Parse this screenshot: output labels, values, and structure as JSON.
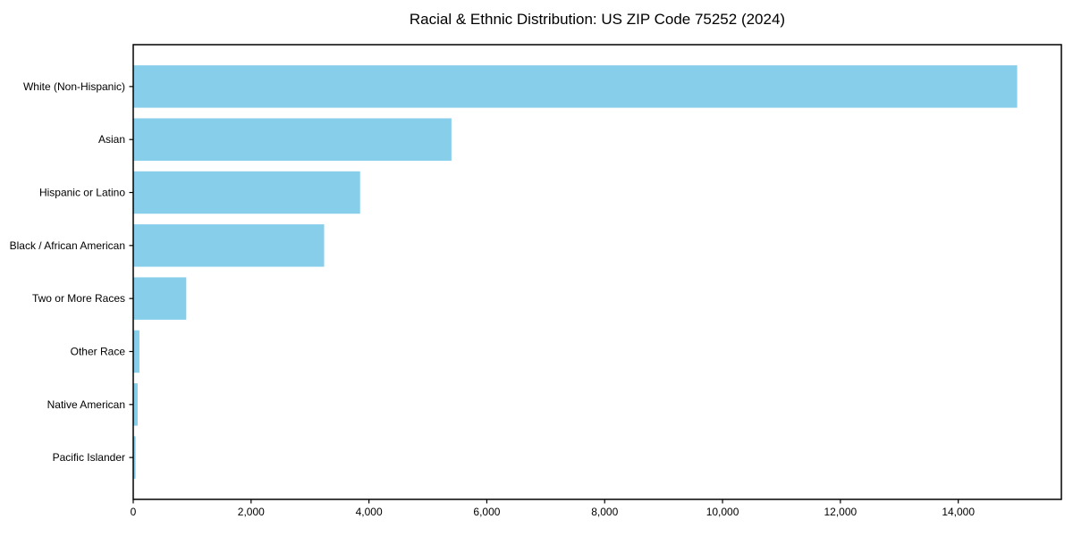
{
  "page": {
    "background_color": "#ffffff",
    "text_color": "#000000"
  },
  "chart_data": {
    "type": "bar",
    "orientation": "horizontal",
    "title": "Racial & Ethnic Distribution: US ZIP Code 75252 (2024)",
    "categories": [
      "White (Non-Hispanic)",
      "Asian",
      "Hispanic or Latino",
      "Black / African American",
      "Two or More Races",
      "Other Race",
      "Native American",
      "Pacific Islander"
    ],
    "values": [
      15000,
      5400,
      3850,
      3240,
      900,
      105,
      75,
      40
    ],
    "xlabel": "",
    "ylabel": "",
    "xlim": [
      0,
      15750
    ],
    "xticks": [
      0,
      2000,
      4000,
      6000,
      8000,
      10000,
      12000,
      14000
    ],
    "xtick_labels": [
      "0",
      "2,000",
      "4,000",
      "6,000",
      "8,000",
      "10,000",
      "12,000",
      "14,000"
    ],
    "bar_color": "#87CEEB",
    "frame_color": "#000000",
    "grid": false,
    "legend_position": "none"
  }
}
